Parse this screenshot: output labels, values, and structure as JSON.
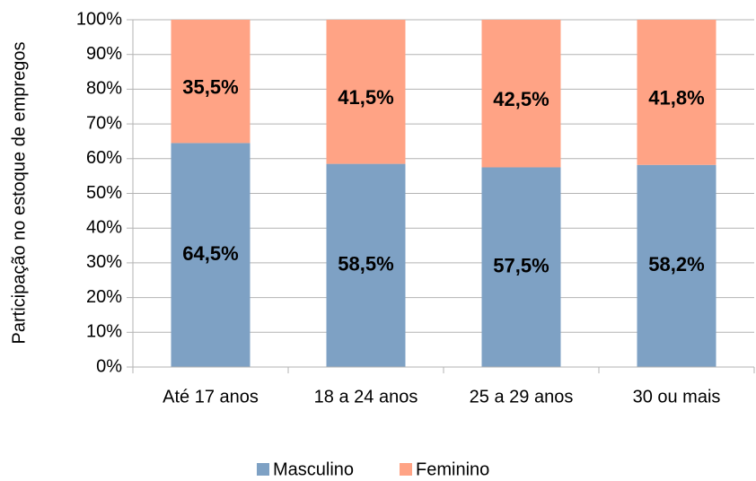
{
  "chart_data": {
    "type": "stacked_bar",
    "y_label": "Participação no estoque de empregos",
    "categories": [
      "Até 17 anos",
      "18 a 24 anos",
      "25 a 29 anos",
      "30 ou mais"
    ],
    "series": [
      {
        "name": "Masculino",
        "color": "#7ea1c4",
        "values": [
          64.5,
          58.5,
          57.5,
          58.2
        ],
        "value_labels": [
          "64,5%",
          "58,5%",
          "57,5%",
          "58,2%"
        ]
      },
      {
        "name": "Feminino",
        "color": "#ffa385",
        "values": [
          35.5,
          41.5,
          42.5,
          41.8
        ],
        "value_labels": [
          "35,5%",
          "41,5%",
          "42,5%",
          "41,8%"
        ]
      }
    ],
    "ylim": [
      0,
      100
    ],
    "yticks": [
      {
        "value": 0,
        "label": "0%"
      },
      {
        "value": 10,
        "label": "10%"
      },
      {
        "value": 20,
        "label": "20%"
      },
      {
        "value": 30,
        "label": "30%"
      },
      {
        "value": 40,
        "label": "40%"
      },
      {
        "value": 50,
        "label": "50%"
      },
      {
        "value": 60,
        "label": "60%"
      },
      {
        "value": 70,
        "label": "70%"
      },
      {
        "value": 80,
        "label": "80%"
      },
      {
        "value": 90,
        "label": "90%"
      },
      {
        "value": 100,
        "label": "100%"
      }
    ],
    "grid": true,
    "legend": "bottom"
  }
}
